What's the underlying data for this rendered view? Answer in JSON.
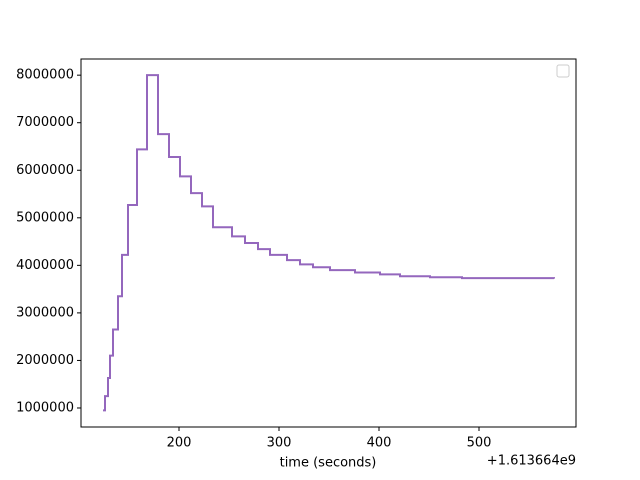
{
  "chart_data": {
    "type": "line",
    "drawstyle": "steps-post",
    "xlabel": "time (seconds)",
    "x_offset_label": "+1.613664e9",
    "x": [
      124,
      126,
      129,
      131,
      134,
      139,
      143,
      149,
      158,
      168,
      179,
      190,
      201,
      212,
      223,
      234,
      253,
      266,
      279,
      291,
      308,
      321,
      334,
      351,
      376,
      401,
      421,
      451,
      483,
      575
    ],
    "series": [
      {
        "color": "#9467bd",
        "values": [
          950000,
          1250000,
          1630000,
          2100000,
          2650000,
          3350000,
          4220000,
          5270000,
          6440000,
          8000000,
          6760000,
          6280000,
          5870000,
          5520000,
          5240000,
          4800000,
          4610000,
          4470000,
          4340000,
          4220000,
          4110000,
          4020000,
          3960000,
          3900000,
          3850000,
          3810000,
          3770000,
          3750000,
          3730000,
          3720000
        ]
      }
    ],
    "xlim": [
      102,
      597
    ],
    "xticks": [
      200,
      300,
      400,
      500
    ],
    "ylim": [
      600000,
      8340000
    ],
    "yticks": [
      1000000,
      2000000,
      3000000,
      4000000,
      5000000,
      6000000,
      7000000,
      8000000
    ],
    "grid": false
  }
}
